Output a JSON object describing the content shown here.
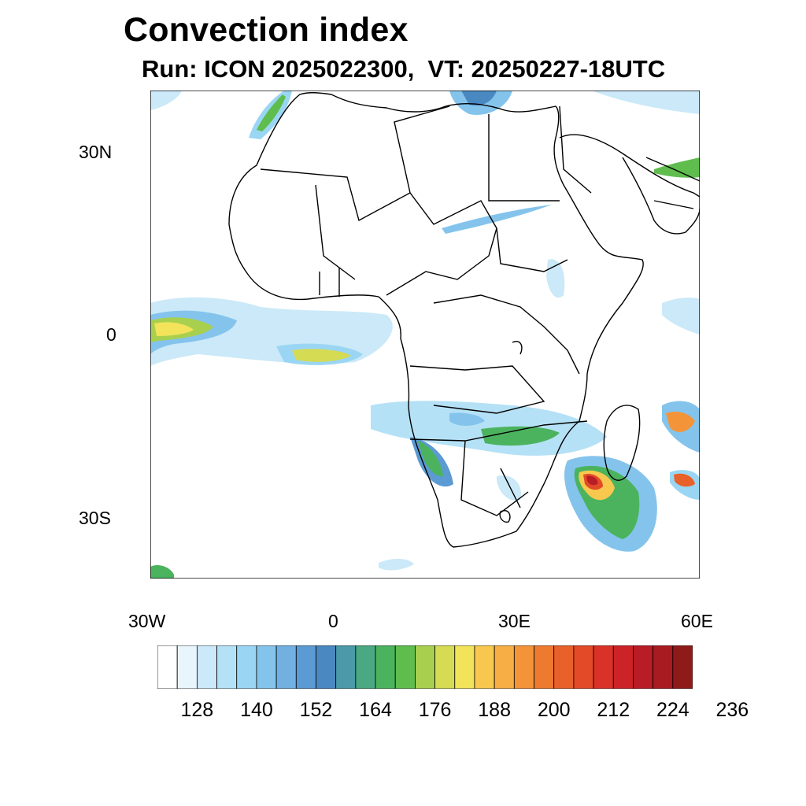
{
  "title": "Convection index",
  "subtitle": "Run: ICON 2025022300,  VT: 20250227-18UTC",
  "axes": {
    "lat_labels": [
      "30N",
      "0",
      "30S"
    ],
    "lon_labels": [
      "30W",
      "0",
      "30E",
      "60E"
    ]
  },
  "colorbar": {
    "colors": [
      "#ffffff",
      "#e8f5fc",
      "#cbe9f8",
      "#b5e1f6",
      "#9ad6f3",
      "#84c4ec",
      "#71b0e1",
      "#5b9ad2",
      "#4a88c2",
      "#4a9aaa",
      "#4aa882",
      "#4bb35e",
      "#5fbd4e",
      "#a8d04e",
      "#d5db52",
      "#f2e35a",
      "#f8c84e",
      "#f6ae45",
      "#f39439",
      "#ee7a2f",
      "#e8602a",
      "#e24a28",
      "#da3228",
      "#cc2329",
      "#b81c25",
      "#a81b21",
      "#8f1a1a"
    ],
    "labels": [
      "128",
      "140",
      "152",
      "164",
      "176",
      "188",
      "200",
      "212",
      "224",
      "236"
    ]
  }
}
